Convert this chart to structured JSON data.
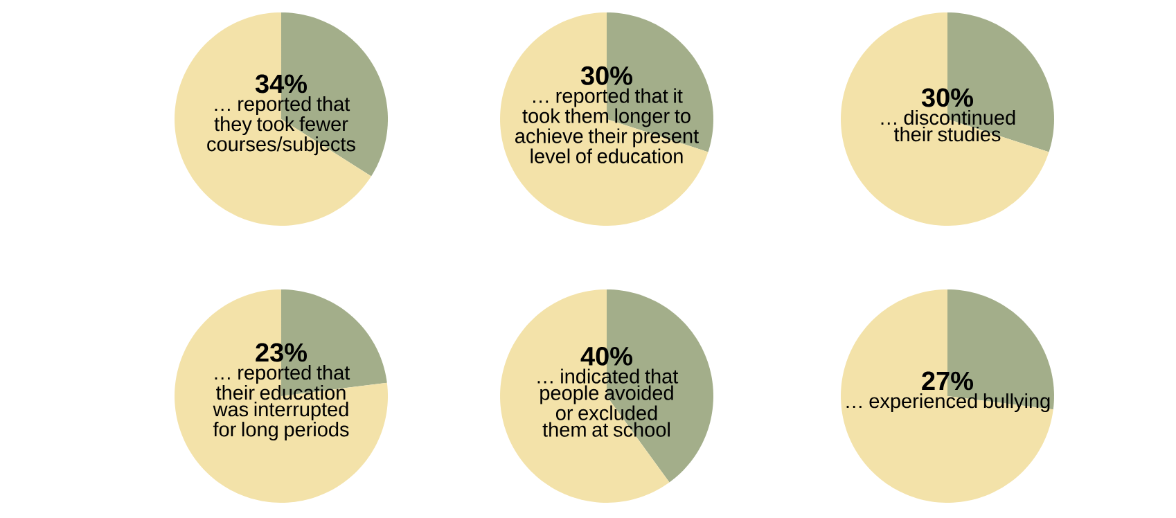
{
  "chart_data": [
    {
      "type": "pie",
      "categories": [
        null,
        null
      ],
      "values": [
        34,
        66
      ],
      "colors": [
        "#a3ae8a",
        "#f3e2a9"
      ],
      "value_labels": [
        "34%",
        null
      ],
      "subtitle": "… reported that they took fewer courses/subjects"
    },
    {
      "type": "pie",
      "categories": [
        null,
        null
      ],
      "values": [
        30,
        70
      ],
      "colors": [
        "#a3ae8a",
        "#f3e2a9"
      ],
      "value_labels": [
        "30%",
        null
      ],
      "subtitle": "… reported that it took them longer to achieve their present level of education"
    },
    {
      "type": "pie",
      "categories": [
        null,
        null
      ],
      "values": [
        30,
        70
      ],
      "colors": [
        "#a3ae8a",
        "#f3e2a9"
      ],
      "value_labels": [
        "30%",
        null
      ],
      "subtitle": "… discontinued their studies"
    },
    {
      "type": "pie",
      "categories": [
        null,
        null
      ],
      "values": [
        23,
        77
      ],
      "colors": [
        "#a3ae8a",
        "#f3e2a9"
      ],
      "value_labels": [
        "23%",
        null
      ],
      "subtitle": "… reported that their education was interrupted for long periods"
    },
    {
      "type": "pie",
      "categories": [
        null,
        null
      ],
      "values": [
        40,
        60
      ],
      "colors": [
        "#a3ae8a",
        "#f3e2a9"
      ],
      "value_labels": [
        "40%",
        null
      ],
      "subtitle": "… indicated that people avoided or excluded them at school"
    },
    {
      "type": "pie",
      "categories": [
        null,
        null
      ],
      "values": [
        27,
        73
      ],
      "colors": [
        "#a3ae8a",
        "#f3e2a9"
      ],
      "value_labels": [
        "27%",
        null
      ],
      "subtitle": "… experienced bullying"
    }
  ]
}
